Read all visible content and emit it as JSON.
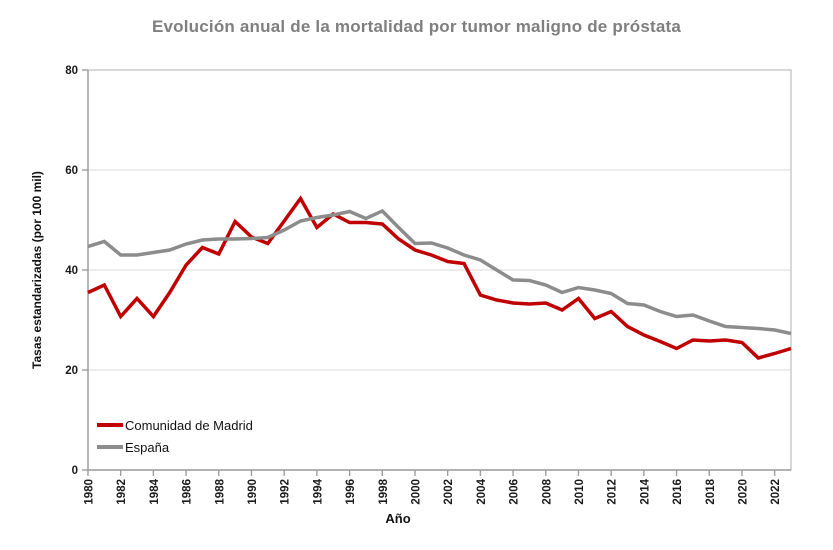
{
  "chart_data": {
    "type": "line",
    "title": "Evolución anual de la mortalidad por tumor maligno de próstata",
    "xlabel": "Año",
    "ylabel": "Tasas estandarizadas (por 100 mil)",
    "xlim": [
      1980,
      2023
    ],
    "ylim": [
      0,
      80
    ],
    "y_ticks": [
      0,
      20,
      40,
      60,
      80
    ],
    "x_tick_years": [
      1980,
      1982,
      1984,
      1986,
      1988,
      1990,
      1992,
      1994,
      1996,
      1998,
      2000,
      2002,
      2004,
      2006,
      2008,
      2010,
      2012,
      2014,
      2016,
      2018,
      2020,
      2022
    ],
    "grid": true,
    "legend_position": "inside-bottom-left",
    "x": [
      1980,
      1981,
      1982,
      1983,
      1984,
      1985,
      1986,
      1987,
      1988,
      1989,
      1990,
      1991,
      1992,
      1993,
      1994,
      1995,
      1996,
      1997,
      1998,
      1999,
      2000,
      2001,
      2002,
      2003,
      2004,
      2005,
      2006,
      2007,
      2008,
      2009,
      2010,
      2011,
      2012,
      2013,
      2014,
      2015,
      2016,
      2017,
      2018,
      2019,
      2020,
      2021,
      2022,
      2023
    ],
    "series": [
      {
        "name": "Comunidad de Madrid",
        "color": "#c00000",
        "values": [
          35.5,
          37.0,
          30.7,
          34.3,
          30.7,
          35.5,
          41.0,
          44.5,
          43.2,
          49.7,
          46.6,
          45.3,
          49.8,
          54.3,
          48.5,
          51.2,
          49.5,
          49.5,
          49.2,
          46.2,
          44.0,
          43.0,
          41.7,
          41.3,
          35.0,
          34.0,
          33.4,
          33.2,
          33.4,
          32.0,
          34.3,
          30.3,
          31.7,
          28.7,
          27.0,
          25.7,
          24.3,
          26.0,
          25.8,
          26.0,
          25.5,
          22.4,
          23.3,
          24.3
        ]
      },
      {
        "name": "España",
        "color": "#8c8c8c",
        "values": [
          44.7,
          45.7,
          43.0,
          43.0,
          43.5,
          44.0,
          45.2,
          46.0,
          46.2,
          46.2,
          46.3,
          46.5,
          48.0,
          49.8,
          50.5,
          51.0,
          51.7,
          50.3,
          51.8,
          48.5,
          45.3,
          45.4,
          44.4,
          43.0,
          42.0,
          40.0,
          38.0,
          37.9,
          37.0,
          35.5,
          36.5,
          36.0,
          35.3,
          33.3,
          33.0,
          31.7,
          30.7,
          31.0,
          29.8,
          28.7,
          28.5,
          28.3,
          28.0,
          27.3
        ]
      }
    ],
    "style": {
      "title_color": "#7f7f7f",
      "tick_label_color": "#1a1a1a",
      "gridline_color": "#d9d9d9",
      "border_color": "#bfbfbf",
      "axis_color": "#9d9d9d"
    }
  }
}
